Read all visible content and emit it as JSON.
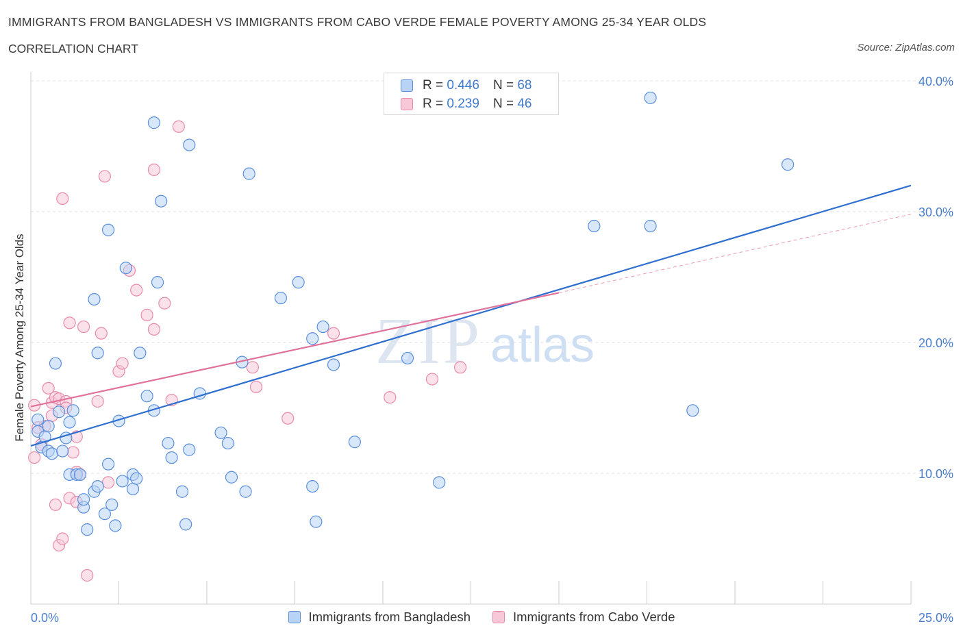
{
  "header": {
    "title": "IMMIGRANTS FROM BANGLADESH VS IMMIGRANTS FROM CABO VERDE FEMALE POVERTY AMONG 25-34 YEAR OLDS",
    "subtitle": "CORRELATION CHART",
    "source": "Source: ZipAtlas.com"
  },
  "legend": {
    "rows": [
      {
        "r_label": "R =",
        "r_value": "0.446",
        "n_label": "N =",
        "n_value": "68"
      },
      {
        "r_label": "R =",
        "r_value": "0.239",
        "n_label": "N =",
        "n_value": "46"
      }
    ]
  },
  "watermark": {
    "zip": "ZIP",
    "atlas": "atlas"
  },
  "colors": {
    "blue_fill": "#b8d3f5",
    "blue_stroke": "#5a8fdc",
    "blue_line": "#2f6fcf",
    "pink_fill": "#f8c8d8",
    "pink_stroke": "#e98aaa",
    "pink_line": "#e0719a",
    "axis_text": "#4a7fcf"
  },
  "chart_data": {
    "type": "scatter",
    "title": "IMMIGRANTS FROM BANGLADESH VS IMMIGRANTS FROM CABO VERDE FEMALE POVERTY AMONG 25-34 YEAR OLDS",
    "xlabel": "",
    "ylabel": "Female Poverty Among 25-34 Year Olds",
    "xlim": [
      0,
      25
    ],
    "ylim": [
      0,
      40
    ],
    "x_tick_labels": [
      "0.0%",
      "25.0%"
    ],
    "y_ticks": [
      10,
      20,
      30,
      40
    ],
    "y_tick_labels": [
      "10.0%",
      "20.0%",
      "30.0%",
      "40.0%"
    ],
    "grid": true,
    "legend_position": "top-center",
    "series": [
      {
        "name": "Immigrants from Bangladesh",
        "color": "#5a8fdc",
        "trend": {
          "x": [
            0,
            25
          ],
          "y": [
            12.1,
            32.0
          ]
        },
        "points": [
          [
            0.2,
            14.1
          ],
          [
            0.2,
            13.2
          ],
          [
            0.3,
            12.0
          ],
          [
            0.4,
            12.8
          ],
          [
            0.5,
            11.7
          ],
          [
            0.5,
            13.6
          ],
          [
            0.6,
            11.5
          ],
          [
            0.7,
            18.4
          ],
          [
            0.8,
            14.7
          ],
          [
            0.9,
            11.7
          ],
          [
            1.0,
            12.7
          ],
          [
            1.1,
            13.9
          ],
          [
            1.1,
            9.9
          ],
          [
            1.2,
            14.8
          ],
          [
            1.3,
            9.9
          ],
          [
            1.4,
            9.9
          ],
          [
            1.5,
            7.4
          ],
          [
            1.5,
            8.0
          ],
          [
            1.6,
            5.7
          ],
          [
            1.8,
            8.6
          ],
          [
            1.9,
            9.0
          ],
          [
            1.9,
            19.2
          ],
          [
            2.1,
            6.9
          ],
          [
            2.2,
            10.7
          ],
          [
            2.3,
            7.6
          ],
          [
            2.4,
            6.0
          ],
          [
            2.5,
            14.0
          ],
          [
            2.6,
            9.4
          ],
          [
            2.7,
            25.7
          ],
          [
            2.9,
            8.8
          ],
          [
            2.9,
            9.9
          ],
          [
            3.0,
            9.6
          ],
          [
            3.1,
            19.2
          ],
          [
            3.3,
            15.9
          ],
          [
            3.5,
            14.8
          ],
          [
            3.6,
            24.6
          ],
          [
            3.7,
            30.8
          ],
          [
            3.9,
            12.3
          ],
          [
            4.0,
            11.2
          ],
          [
            4.3,
            8.6
          ],
          [
            4.4,
            6.1
          ],
          [
            4.5,
            11.8
          ],
          [
            4.8,
            16.1
          ],
          [
            5.4,
            13.1
          ],
          [
            5.6,
            12.3
          ],
          [
            5.7,
            9.7
          ],
          [
            6.0,
            18.5
          ],
          [
            6.1,
            8.6
          ],
          [
            7.1,
            23.4
          ],
          [
            7.6,
            24.6
          ],
          [
            8.0,
            20.3
          ],
          [
            8.0,
            9.0
          ],
          [
            8.1,
            6.3
          ],
          [
            8.3,
            21.2
          ],
          [
            8.6,
            18.3
          ],
          [
            9.2,
            12.4
          ],
          [
            10.7,
            18.8
          ],
          [
            11.6,
            9.3
          ],
          [
            2.2,
            28.6
          ],
          [
            3.5,
            36.8
          ],
          [
            4.5,
            35.1
          ],
          [
            6.2,
            32.9
          ],
          [
            16.0,
            28.9
          ],
          [
            17.6,
            38.7
          ],
          [
            17.6,
            28.9
          ],
          [
            18.8,
            14.8
          ],
          [
            21.5,
            33.6
          ],
          [
            1.8,
            23.3
          ]
        ]
      },
      {
        "name": "Immigrants from Cabo Verde",
        "color": "#e98aaa",
        "trend": {
          "x": [
            0,
            15.0
          ],
          "y": [
            15.1,
            23.8
          ]
        },
        "trend_extension": {
          "x": [
            15.0,
            25
          ],
          "y": [
            23.8,
            29.8
          ]
        },
        "points": [
          [
            0.1,
            15.2
          ],
          [
            0.1,
            11.2
          ],
          [
            0.2,
            13.5
          ],
          [
            0.3,
            12.2
          ],
          [
            0.4,
            13.6
          ],
          [
            0.5,
            16.5
          ],
          [
            0.6,
            14.4
          ],
          [
            0.6,
            15.4
          ],
          [
            0.7,
            7.6
          ],
          [
            0.7,
            15.8
          ],
          [
            0.8,
            15.7
          ],
          [
            0.8,
            4.5
          ],
          [
            0.9,
            31.0
          ],
          [
            0.9,
            5.0
          ],
          [
            1.0,
            15.5
          ],
          [
            1.0,
            15.0
          ],
          [
            1.1,
            8.1
          ],
          [
            1.1,
            21.5
          ],
          [
            1.2,
            11.6
          ],
          [
            1.3,
            10.1
          ],
          [
            1.3,
            12.8
          ],
          [
            1.3,
            7.8
          ],
          [
            1.5,
            21.2
          ],
          [
            1.6,
            2.2
          ],
          [
            1.9,
            15.5
          ],
          [
            2.0,
            20.7
          ],
          [
            2.1,
            32.7
          ],
          [
            2.2,
            9.3
          ],
          [
            2.5,
            17.8
          ],
          [
            2.6,
            18.4
          ],
          [
            2.8,
            25.5
          ],
          [
            3.0,
            24.0
          ],
          [
            3.3,
            22.1
          ],
          [
            3.5,
            21.0
          ],
          [
            3.5,
            33.2
          ],
          [
            3.8,
            23.0
          ],
          [
            4.0,
            15.6
          ],
          [
            4.2,
            36.5
          ],
          [
            6.3,
            18.1
          ],
          [
            6.4,
            16.6
          ],
          [
            7.3,
            14.2
          ],
          [
            8.6,
            20.7
          ],
          [
            10.2,
            15.8
          ],
          [
            11.4,
            17.2
          ],
          [
            12.2,
            18.1
          ],
          [
            1.4,
            9.9
          ]
        ]
      }
    ]
  },
  "bottom_legend": {
    "items": [
      {
        "label": "Immigrants from Bangladesh"
      },
      {
        "label": "Immigrants from Cabo Verde"
      }
    ]
  }
}
